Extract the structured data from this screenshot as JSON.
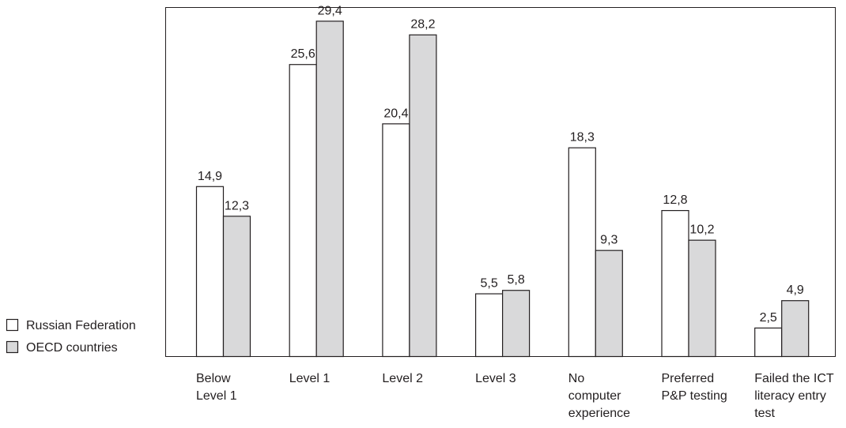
{
  "chart_data": {
    "type": "bar",
    "categories": [
      [
        "Below",
        "Level 1"
      ],
      [
        "Level 1"
      ],
      [
        "Level 2"
      ],
      [
        "Level 3"
      ],
      [
        "No",
        "computer",
        "experience"
      ],
      [
        "Preferred",
        "P&P testing"
      ],
      [
        "Failed the ICT",
        "literacy entry",
        "test"
      ]
    ],
    "series": [
      {
        "name": "Russian Federation",
        "values": [
          14.9,
          25.6,
          20.4,
          5.5,
          18.3,
          12.8,
          2.5
        ],
        "labels": [
          "14,9",
          "25,6",
          "20,4",
          "5,5",
          "18,3",
          "12,8",
          "2,5"
        ],
        "fill": "#ffffff"
      },
      {
        "name": "OECD countries",
        "values": [
          12.3,
          29.4,
          28.2,
          5.8,
          9.3,
          10.2,
          4.9
        ],
        "labels": [
          "12,3",
          "29,4",
          "28,2",
          "5,8",
          "9,3",
          "10,2",
          "4,9"
        ],
        "fill": "#d9d9da"
      }
    ],
    "ylim": [
      0,
      30.6
    ],
    "grid": false,
    "legend": "left",
    "colors": {
      "stroke": "#231f20",
      "text": "#231f20"
    }
  }
}
